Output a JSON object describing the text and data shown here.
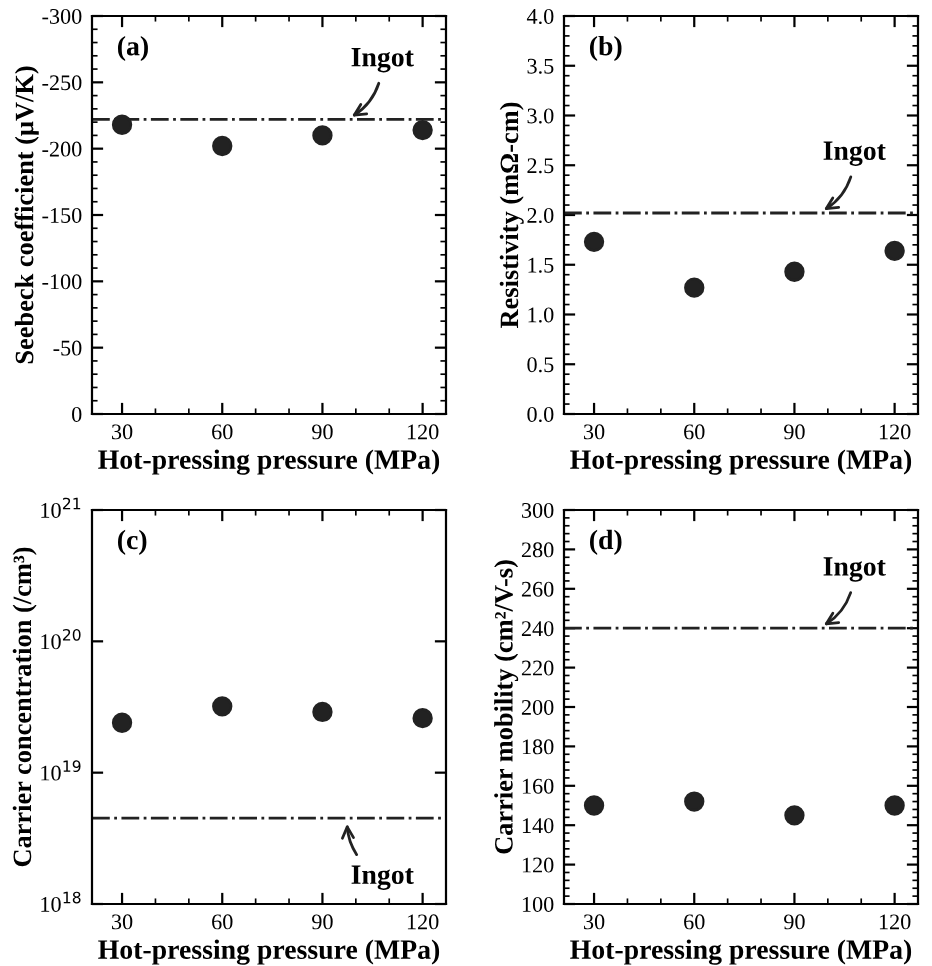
{
  "chart_data": [
    {
      "type": "scatter",
      "title": "(a)",
      "xlabel": "Hot-pressing pressure (MPa)",
      "ylabel": "Seebeck coefficient (μV/K)",
      "x": [
        30,
        60,
        90,
        120
      ],
      "xlim": [
        21,
        127
      ],
      "xticks": [
        30,
        60,
        90,
        120
      ],
      "ylim": [
        0,
        -300
      ],
      "yticks": [
        0,
        -50,
        -100,
        -150,
        -200,
        -250,
        -300
      ],
      "grid": false,
      "marker": "circle",
      "series": [
        {
          "color": "#222222",
          "values": [
            -218,
            -202,
            -210,
            -214
          ]
        }
      ],
      "ref_lines": [
        {
          "axis": "y",
          "value": -222,
          "label": "Ingot",
          "color": "#222222",
          "line_style": "dashdot"
        }
      ]
    },
    {
      "type": "scatter",
      "title": "(b)",
      "xlabel": "Hot-pressing pressure (MPa)",
      "ylabel": "Resistivity (mΩ-cm)",
      "x": [
        30,
        60,
        90,
        120
      ],
      "xlim": [
        21,
        127
      ],
      "xticks": [
        30,
        60,
        90,
        120
      ],
      "ylim": [
        0,
        4
      ],
      "yticks": [
        {
          "value": 0,
          "label": "0.0"
        },
        0.5,
        {
          "value": 1,
          "label": "1.0"
        },
        1.5,
        {
          "value": 2,
          "label": "2.0"
        },
        2.5,
        {
          "value": 3,
          "label": "3.0"
        },
        3.5,
        {
          "value": 4,
          "label": "4.0"
        }
      ],
      "grid": false,
      "marker": "circle",
      "series": [
        {
          "color": "#222222",
          "values": [
            1.73,
            1.27,
            1.43,
            1.64
          ]
        }
      ],
      "ref_lines": [
        {
          "axis": "y",
          "value": 2.02,
          "label": "Ingot",
          "color": "#222222",
          "line_style": "dashdot"
        }
      ]
    },
    {
      "type": "scatter",
      "title": "(c)",
      "xlabel": "Hot-pressing pressure (MPa)",
      "ylabel": "Carrier concentration (/cm³)",
      "x": [
        30,
        60,
        90,
        120
      ],
      "xlim": [
        21,
        127
      ],
      "xticks": [
        30,
        60,
        90,
        120
      ],
      "log": "y",
      "ylim": [
        1e+18,
        1e+21
      ],
      "yticks": [
        {
          "value": 1e+18,
          "label": "10$^{18}$"
        },
        {
          "value": 1e+19,
          "label": "10$^{19}$"
        },
        {
          "value": 1e+20,
          "label": "10$^{20}$"
        },
        {
          "value": 1e+21,
          "label": "10$^{21}$"
        }
      ],
      "grid": false,
      "marker": "circle",
      "series": [
        {
          "color": "#222222",
          "values": [
            2.4e+19,
            3.2e+19,
            2.9e+19,
            2.6e+19
          ]
        }
      ],
      "ref_lines": [
        {
          "axis": "y",
          "value": 4.5e+18,
          "label": "Ingot",
          "color": "#222222",
          "line_style": "dashdot"
        }
      ]
    },
    {
      "type": "scatter",
      "title": "(d)",
      "xlabel": "Hot-pressing pressure (MPa)",
      "ylabel": "Carrier mobility (cm²/V-s)",
      "x": [
        30,
        60,
        90,
        120
      ],
      "xlim": [
        21,
        127
      ],
      "xticks": [
        30,
        60,
        90,
        120
      ],
      "ylim": [
        100,
        300
      ],
      "yticks": [
        100,
        120,
        140,
        160,
        180,
        200,
        220,
        240,
        260,
        280,
        300
      ],
      "grid": false,
      "marker": "circle",
      "series": [
        {
          "color": "#222222",
          "values": [
            150,
            152,
            145,
            150
          ]
        }
      ],
      "ref_lines": [
        {
          "axis": "y",
          "value": 240,
          "label": "Ingot",
          "color": "#222222",
          "line_style": "dashdot"
        }
      ]
    }
  ]
}
